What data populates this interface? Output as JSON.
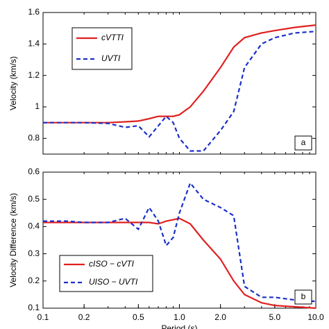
{
  "chart_data": [
    {
      "type": "line",
      "ylabel": "Velocity (km/s)",
      "panel_label": "a",
      "log_x": true,
      "x": [
        0.1,
        0.15,
        0.2,
        0.3,
        0.4,
        0.5,
        0.6,
        0.7,
        0.8,
        0.9,
        1.0,
        1.2,
        1.5,
        2.0,
        2.5,
        3.0,
        4.0,
        5.0,
        7.0,
        10.0
      ],
      "xlim": [
        0.1,
        10
      ],
      "ylim": [
        0.7,
        1.6
      ],
      "yticks": [
        0.8,
        1.0,
        1.2,
        1.4,
        1.6
      ],
      "legend": "upper left",
      "series": [
        {
          "name": "cVTTI",
          "color": "#e02020",
          "dash": false,
          "values": [
            0.9,
            0.9,
            0.9,
            0.9,
            0.905,
            0.91,
            0.925,
            0.94,
            0.94,
            0.94,
            0.95,
            1.0,
            1.1,
            1.25,
            1.38,
            1.44,
            1.47,
            1.485,
            1.505,
            1.52
          ]
        },
        {
          "name": "UVTI",
          "color": "#1a2fc8",
          "dash": true,
          "values": [
            0.9,
            0.9,
            0.9,
            0.895,
            0.87,
            0.88,
            0.81,
            0.88,
            0.94,
            0.9,
            0.8,
            0.72,
            0.72,
            0.85,
            0.97,
            1.25,
            1.4,
            1.44,
            1.47,
            1.48
          ]
        }
      ]
    },
    {
      "type": "line",
      "ylabel": "Velocity Difference (km/s)",
      "xlabel": "Period (s)",
      "panel_label": "b",
      "log_x": true,
      "x": [
        0.1,
        0.15,
        0.2,
        0.3,
        0.4,
        0.5,
        0.6,
        0.7,
        0.8,
        0.9,
        1.0,
        1.2,
        1.5,
        2.0,
        2.5,
        3.0,
        4.0,
        5.0,
        7.0,
        10.0
      ],
      "xlim": [
        0.1,
        10
      ],
      "xticks": [
        0.1,
        0.2,
        0.5,
        {
          "value": 1,
          "label": "1.0"
        },
        {
          "value": 2,
          "label": "2.0"
        },
        {
          "value": 5,
          "label": "5.0"
        },
        {
          "value": 10,
          "label": "10.0"
        }
      ],
      "ylim": [
        0.1,
        0.6
      ],
      "yticks": [
        0.1,
        0.2,
        0.3,
        0.4,
        0.5,
        0.6
      ],
      "legend": "lower left",
      "series": [
        {
          "name": "cISO − cVTI",
          "color": "#e02020",
          "dash": false,
          "values": [
            0.415,
            0.415,
            0.415,
            0.415,
            0.415,
            0.415,
            0.415,
            0.41,
            0.42,
            0.425,
            0.43,
            0.41,
            0.35,
            0.28,
            0.2,
            0.15,
            0.12,
            0.11,
            0.105,
            0.1
          ]
        },
        {
          "name": "UISO − UVTI",
          "color": "#1a2fc8",
          "dash": true,
          "values": [
            0.42,
            0.42,
            0.415,
            0.415,
            0.43,
            0.39,
            0.47,
            0.42,
            0.33,
            0.36,
            0.45,
            0.56,
            0.5,
            0.47,
            0.44,
            0.18,
            0.14,
            0.14,
            0.13,
            0.125
          ]
        }
      ]
    }
  ]
}
